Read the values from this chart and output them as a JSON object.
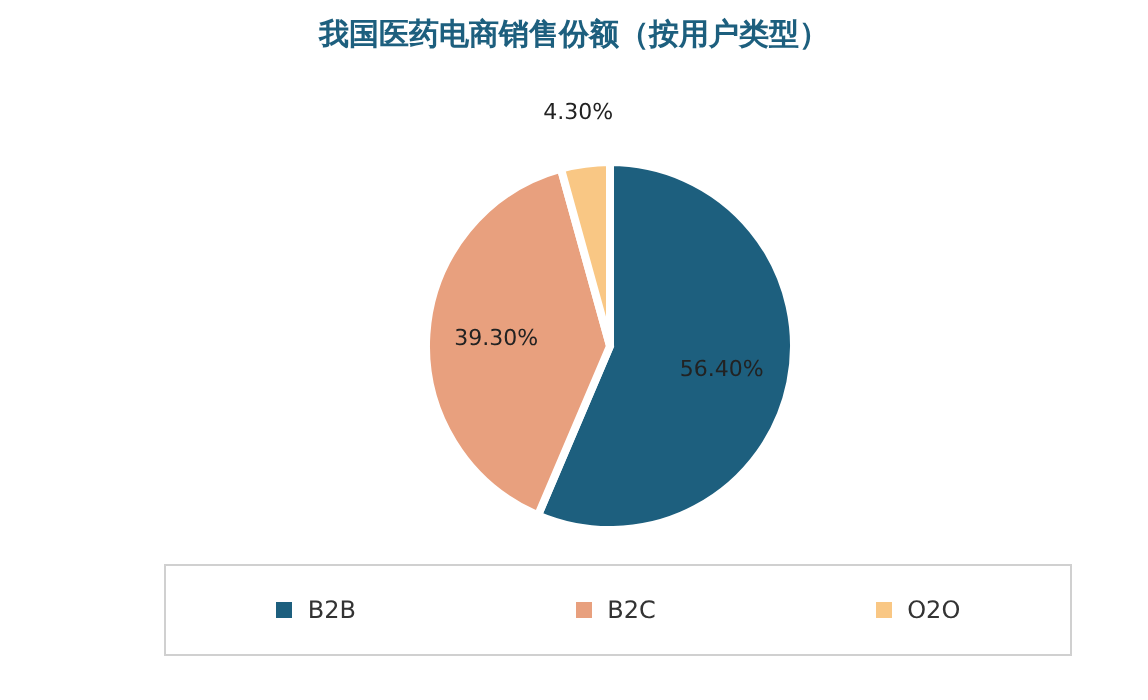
{
  "chart_data": {
    "type": "pie",
    "title": "我国医药电商销售份额（按用户类型）",
    "categories": [
      "B2B",
      "B2C",
      "O2O"
    ],
    "values": [
      56.4,
      39.3,
      4.3
    ],
    "colors": [
      "#1d5f7e",
      "#e8a07e",
      "#f9c784"
    ],
    "value_labels": [
      "56.40%",
      "39.30%",
      "4.30%"
    ],
    "legend": "bottom"
  }
}
